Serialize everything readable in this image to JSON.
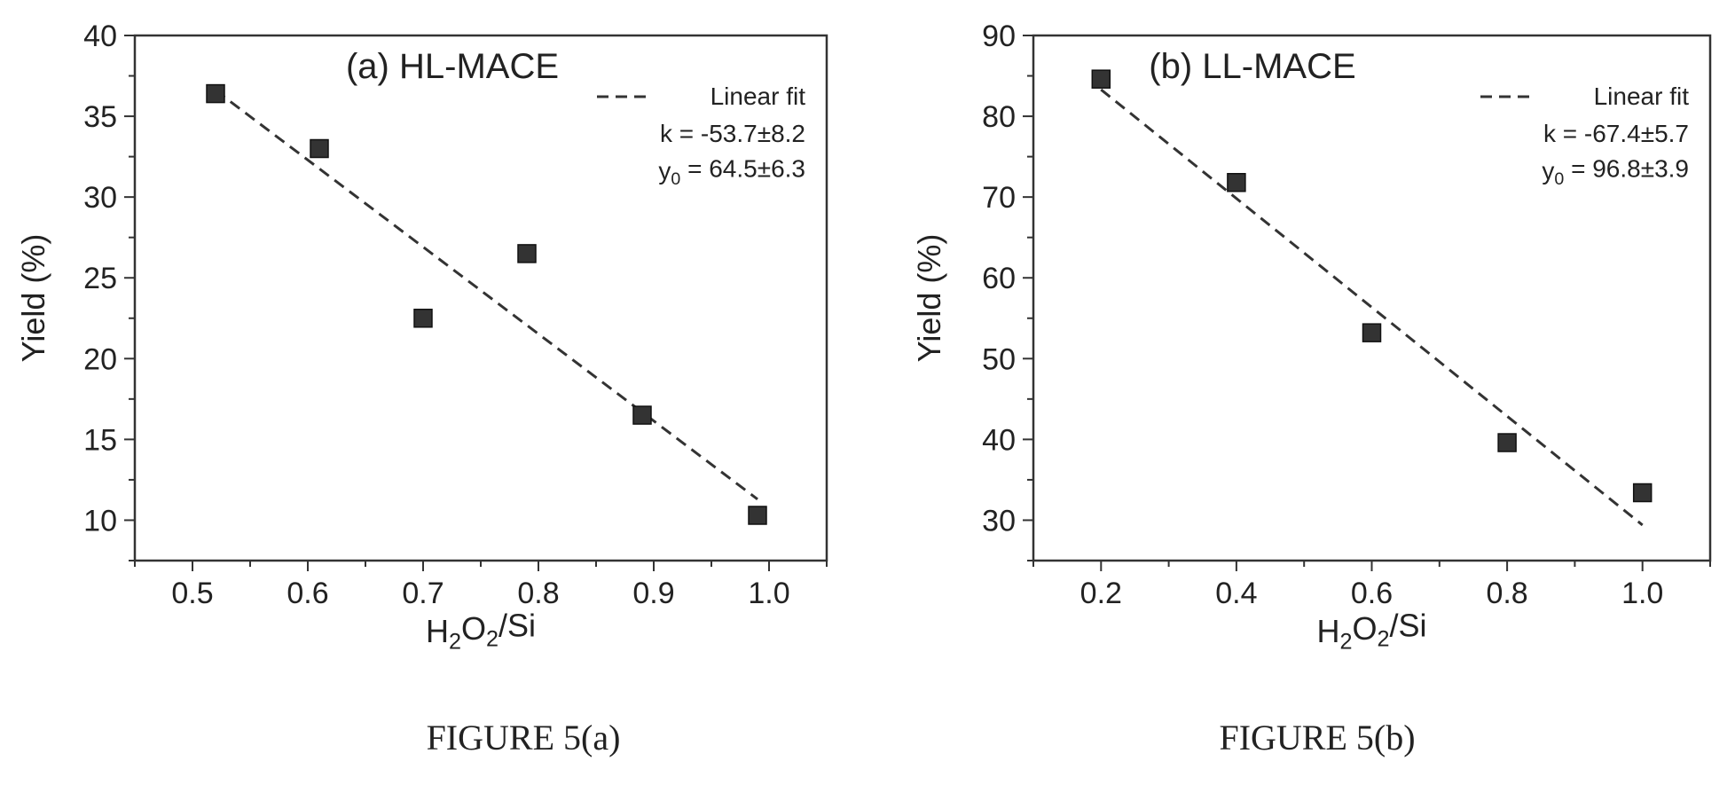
{
  "chart_data": [
    {
      "type": "scatter",
      "title": "(a) HL-MACE",
      "xlabel": "H2O2/Si",
      "ylabel": "Yield (%)",
      "xlim": [
        0.45,
        1.05
      ],
      "ylim": [
        7.5,
        40
      ],
      "xticks": [
        0.5,
        0.6,
        0.7,
        0.8,
        0.9,
        1.0
      ],
      "xtick_labels": [
        "0.5",
        "0.6",
        "0.7",
        "0.8",
        "0.9",
        "1.0"
      ],
      "yticks": [
        10,
        15,
        20,
        25,
        30,
        35,
        40
      ],
      "ytick_labels": [
        "10",
        "15",
        "20",
        "25",
        "30",
        "35",
        "40"
      ],
      "grid": false,
      "legend_position": "top-right",
      "series": [
        {
          "type": "scatter",
          "marker": "square",
          "color": "#333333",
          "x": [
            0.52,
            0.61,
            0.7,
            0.79,
            0.89,
            0.99
          ],
          "y": [
            36.4,
            33.0,
            22.5,
            26.5,
            16.5,
            10.3
          ]
        },
        {
          "type": "line",
          "style": "dashed",
          "name": "Linear fit",
          "color": "#333333",
          "x": [
            0.52,
            0.99
          ],
          "y": [
            36.6,
            11.3
          ]
        }
      ],
      "annotations": [
        "k = -53.7±8.2",
        "y0 = 64.5±6.3"
      ]
    },
    {
      "type": "scatter",
      "title": "(b) LL-MACE",
      "xlabel": "H2O2/Si",
      "ylabel": "Yield (%)",
      "xlim": [
        0.1,
        1.1
      ],
      "ylim": [
        25,
        90
      ],
      "xticks": [
        0.2,
        0.4,
        0.6,
        0.8,
        1.0
      ],
      "xtick_labels": [
        "0.2",
        "0.4",
        "0.6",
        "0.8",
        "1.0"
      ],
      "yticks": [
        30,
        40,
        50,
        60,
        70,
        80,
        90
      ],
      "ytick_labels": [
        "30",
        "40",
        "50",
        "60",
        "70",
        "80",
        "90"
      ],
      "grid": false,
      "legend_position": "top-right",
      "series": [
        {
          "type": "scatter",
          "marker": "square",
          "color": "#333333",
          "x": [
            0.2,
            0.4,
            0.6,
            0.8,
            1.0
          ],
          "y": [
            84.6,
            71.8,
            53.2,
            39.6,
            33.4
          ]
        },
        {
          "type": "line",
          "style": "dashed",
          "name": "Linear fit",
          "color": "#333333",
          "x": [
            0.2,
            1.0
          ],
          "y": [
            83.3,
            29.4
          ]
        }
      ],
      "annotations": [
        "k = -67.4±5.7",
        "y0 = 96.8±3.9"
      ]
    }
  ],
  "captions": [
    "FIGURE 5(a)",
    "FIGURE 5(b)"
  ]
}
